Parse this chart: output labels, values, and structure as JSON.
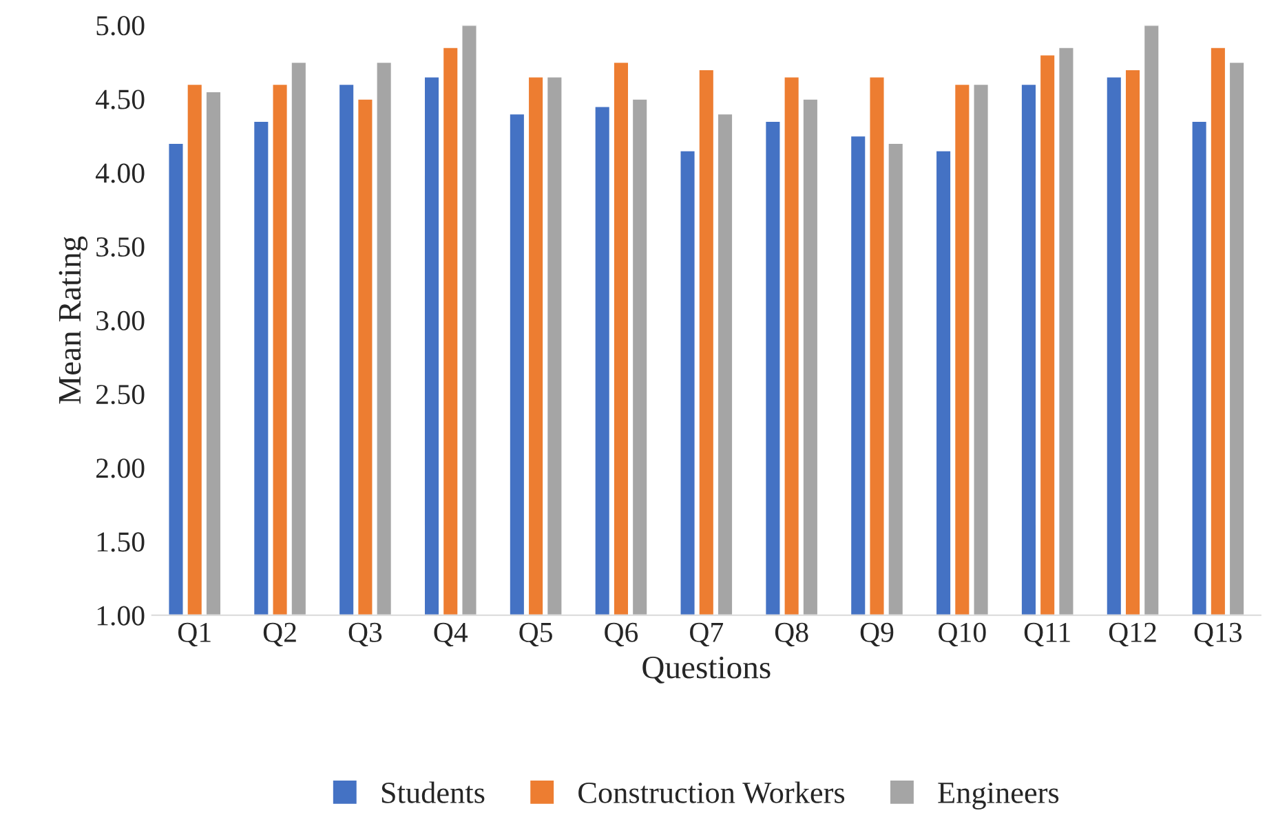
{
  "chart_data": {
    "type": "bar",
    "xlabel": "Questions",
    "ylabel": "Mean Rating",
    "categories": [
      "Q1",
      "Q2",
      "Q3",
      "Q4",
      "Q5",
      "Q6",
      "Q7",
      "Q8",
      "Q9",
      "Q10",
      "Q11",
      "Q12",
      "Q13"
    ],
    "series": [
      {
        "name": "Students",
        "color": "#4472c4",
        "values": [
          4.2,
          4.35,
          4.6,
          4.65,
          4.4,
          4.45,
          4.15,
          4.35,
          4.25,
          4.15,
          4.6,
          4.65,
          4.35
        ]
      },
      {
        "name": "Construction Workers",
        "color": "#ed7d31",
        "values": [
          4.6,
          4.6,
          4.5,
          4.85,
          4.65,
          4.75,
          4.7,
          4.65,
          4.65,
          4.6,
          4.8,
          4.7,
          4.85
        ]
      },
      {
        "name": "Engineers",
        "color": "#a5a5a5",
        "values": [
          4.55,
          4.75,
          4.75,
          5.0,
          4.65,
          4.5,
          4.4,
          4.5,
          4.2,
          4.6,
          4.85,
          5.0,
          4.75
        ]
      }
    ],
    "ylim": [
      1,
      5
    ],
    "yticks": [
      {
        "value": 1,
        "label": "1.00"
      },
      {
        "value": 1.5,
        "label": "1.50"
      },
      {
        "value": 2,
        "label": "2.00"
      },
      {
        "value": 2.5,
        "label": "2.50"
      },
      {
        "value": 3,
        "label": "3.00"
      },
      {
        "value": 3.5,
        "label": "3.50"
      },
      {
        "value": 4,
        "label": "4.00"
      },
      {
        "value": 4.5,
        "label": "4.50"
      },
      {
        "value": 5,
        "label": "5.00"
      }
    ],
    "grid": false,
    "legend": "bottom"
  }
}
